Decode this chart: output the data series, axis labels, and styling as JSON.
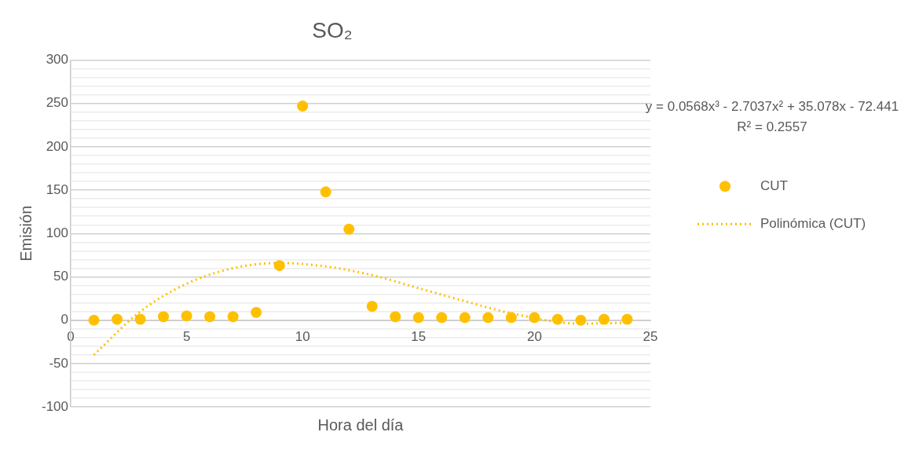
{
  "chart_data": {
    "type": "scatter",
    "title": "SO₂",
    "xlabel": "Hora del día",
    "ylabel": "Emisión",
    "x": [
      1,
      2,
      3,
      4,
      5,
      6,
      7,
      8,
      9,
      10,
      11,
      12,
      13,
      14,
      15,
      16,
      17,
      18,
      19,
      20,
      21,
      22,
      23,
      24
    ],
    "series": [
      {
        "name": "CUT",
        "color": "#ffc000",
        "marker": "circle",
        "values": [
          0,
          1,
          1,
          4,
          5,
          4,
          4,
          9,
          63,
          247,
          148,
          105,
          16,
          4,
          3,
          3,
          3,
          3,
          3,
          3,
          1,
          0,
          1,
          1
        ]
      },
      {
        "name": "Polinómica (CUT)",
        "type": "line",
        "color": "#ffc000",
        "marker": "none",
        "line_style": "dotted",
        "x": [
          1,
          3,
          5,
          7,
          9,
          11,
          13,
          15,
          17,
          19,
          22,
          24
        ],
        "values": [
          -40,
          10,
          42,
          60,
          66,
          62,
          52,
          37,
          22,
          8,
          -4,
          -3
        ]
      }
    ],
    "xlim": [
      0,
      25
    ],
    "xticks": [
      0,
      5,
      10,
      15,
      20,
      25
    ],
    "ylim": [
      -100,
      300
    ],
    "yticks": [
      -100,
      {
        "value": -90,
        "label": null
      },
      {
        "value": -80,
        "label": null
      },
      {
        "value": -70,
        "label": null
      },
      {
        "value": -60,
        "label": null
      },
      -50,
      {
        "value": -40,
        "label": null
      },
      {
        "value": -30,
        "label": null
      },
      {
        "value": -20,
        "label": null
      },
      {
        "value": -10,
        "label": null
      },
      0,
      {
        "value": 10,
        "label": null
      },
      {
        "value": 20,
        "label": null
      },
      {
        "value": 30,
        "label": null
      },
      {
        "value": 40,
        "label": null
      },
      50,
      {
        "value": 60,
        "label": null
      },
      {
        "value": 70,
        "label": null
      },
      {
        "value": 80,
        "label": null
      },
      {
        "value": 90,
        "label": null
      },
      100,
      {
        "value": 110,
        "label": null
      },
      {
        "value": 120,
        "label": null
      },
      {
        "value": 130,
        "label": null
      },
      {
        "value": 140,
        "label": null
      },
      150,
      {
        "value": 160,
        "label": null
      },
      {
        "value": 170,
        "label": null
      },
      {
        "value": 180,
        "label": null
      },
      {
        "value": 190,
        "label": null
      },
      200,
      {
        "value": 210,
        "label": null
      },
      {
        "value": 220,
        "label": null
      },
      {
        "value": 230,
        "label": null
      },
      {
        "value": 240,
        "label": null
      },
      250,
      {
        "value": 260,
        "label": null
      },
      {
        "value": 270,
        "label": null
      },
      {
        "value": 280,
        "label": null
      },
      {
        "value": 290,
        "label": null
      },
      300
    ],
    "grid": "y",
    "legend": "right",
    "annotations": [
      "y = 0.0568x³ - 2.7037x² + 35.078x - 72.441",
      "R² = 0.2557"
    ]
  }
}
